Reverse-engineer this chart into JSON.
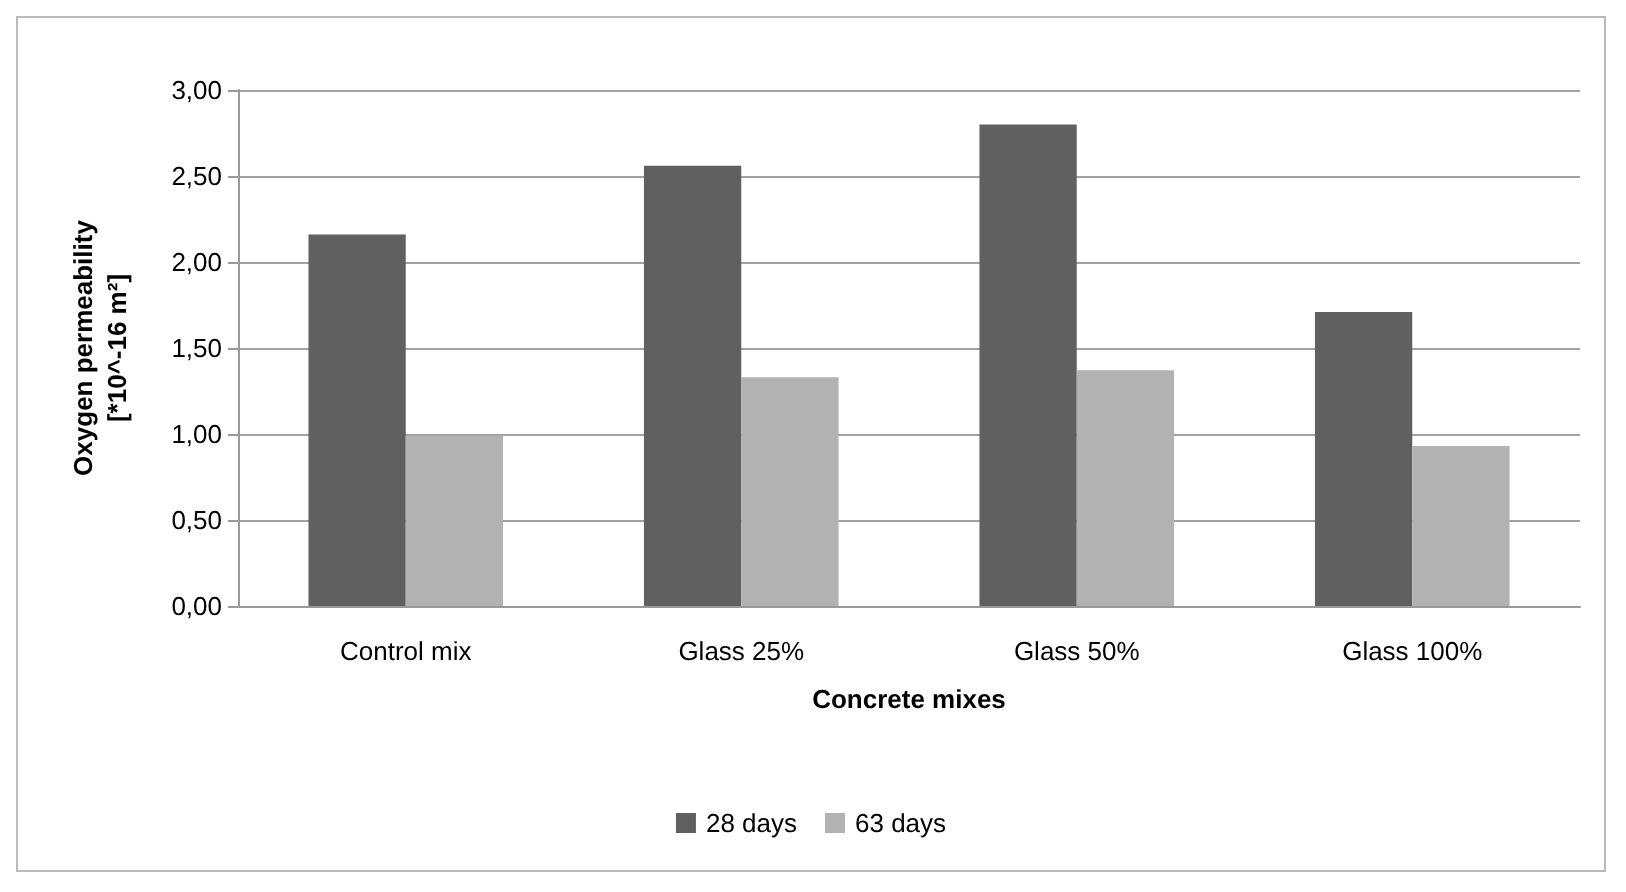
{
  "chart_data": {
    "type": "bar",
    "xlabel": "Concrete mixes",
    "ylabel": "Oxygen permeability\n[*10^-16 m²]",
    "categories": [
      "Control mix",
      "Glass 25%",
      "Glass 50%",
      "Glass 100%"
    ],
    "series": [
      {
        "name": "28 days",
        "color": "#606060",
        "values": [
          2.16,
          2.56,
          2.8,
          1.71
        ]
      },
      {
        "name": "63 days",
        "color": "#b2b2b2",
        "values": [
          0.99,
          1.33,
          1.37,
          0.93
        ]
      }
    ],
    "ylim": [
      0,
      3
    ],
    "yticks": [
      {
        "value": 0,
        "label": "0,00"
      },
      {
        "value": 0.5,
        "label": "0,50"
      },
      {
        "value": 1,
        "label": "1,00"
      },
      {
        "value": 1.5,
        "label": "1,50"
      },
      {
        "value": 2,
        "label": "2,00"
      },
      {
        "value": 2.5,
        "label": "2,50"
      },
      {
        "value": 3,
        "label": "3,00"
      }
    ],
    "grid": "y",
    "legend": "bottom"
  }
}
